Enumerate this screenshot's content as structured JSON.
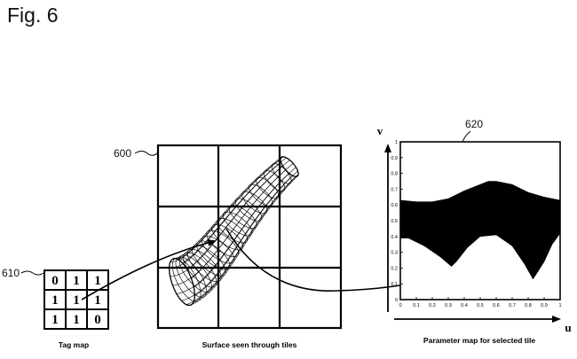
{
  "figure_label": "Fig. 6",
  "refs": {
    "surface": "600",
    "tag_map": "610",
    "param_map": "620"
  },
  "tag_map": {
    "rows": [
      [
        "0",
        "1",
        "1"
      ],
      [
        "1",
        "1",
        "1"
      ],
      [
        "1",
        "1",
        "0"
      ]
    ],
    "caption": "Tag map"
  },
  "tile_grid": {
    "caption": "Surface seen through tiles"
  },
  "param_map": {
    "caption": "Parameter map for selected tile",
    "u_label": "u",
    "v_label": "v",
    "u_ticks": [
      "0",
      "0.1",
      "0.2",
      "0.3",
      "0.4",
      "0.5",
      "0.6",
      "0.7",
      "0.8",
      "0.9",
      "1"
    ],
    "v_ticks": [
      "0",
      "0.1",
      "0.2",
      "0.3",
      "0.4",
      "0.5",
      "0.6",
      "0.7",
      "0.8",
      "0.9",
      "1"
    ]
  }
}
